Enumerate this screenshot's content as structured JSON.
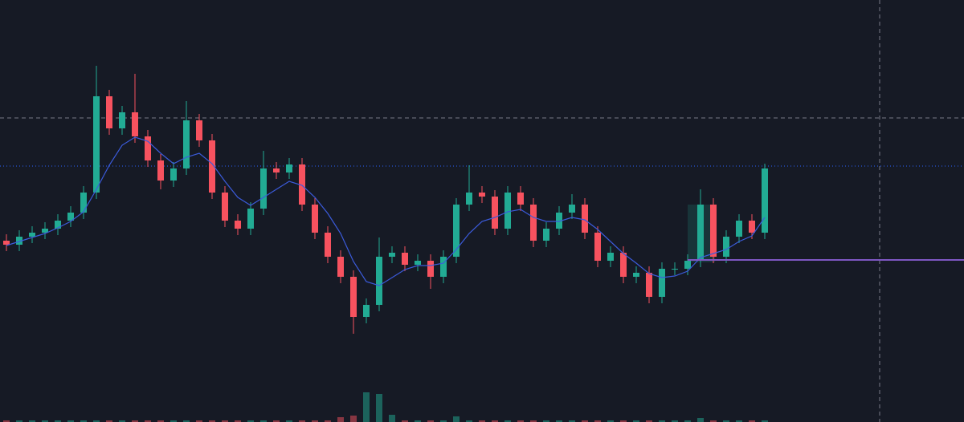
{
  "chart_data": {
    "type": "candlestick",
    "candles": [
      [
        226,
        234,
        213,
        221
      ],
      [
        221,
        239,
        213,
        231
      ],
      [
        231,
        244,
        223,
        236
      ],
      [
        236,
        249,
        228,
        241
      ],
      [
        241,
        259,
        233,
        251
      ],
      [
        251,
        269,
        243,
        261
      ],
      [
        261,
        294,
        253,
        286
      ],
      [
        286,
        444,
        278,
        406
      ],
      [
        406,
        414,
        358,
        366
      ],
      [
        366,
        394,
        358,
        386
      ],
      [
        386,
        434,
        348,
        356
      ],
      [
        356,
        364,
        318,
        326
      ],
      [
        326,
        334,
        290,
        301
      ],
      [
        301,
        324,
        293,
        316
      ],
      [
        316,
        400,
        308,
        376
      ],
      [
        376,
        384,
        343,
        351
      ],
      [
        351,
        359,
        278,
        286
      ],
      [
        286,
        294,
        243,
        251
      ],
      [
        251,
        259,
        233,
        241
      ],
      [
        241,
        274,
        233,
        266
      ],
      [
        266,
        338,
        258,
        316
      ],
      [
        316,
        324,
        303,
        311
      ],
      [
        311,
        329,
        303,
        321
      ],
      [
        321,
        329,
        263,
        271
      ],
      [
        271,
        279,
        228,
        236
      ],
      [
        236,
        244,
        198,
        206
      ],
      [
        206,
        214,
        173,
        181
      ],
      [
        181,
        189,
        110,
        131
      ],
      [
        131,
        154,
        123,
        146
      ],
      [
        146,
        230,
        138,
        206
      ],
      [
        206,
        219,
        198,
        211
      ],
      [
        211,
        219,
        188,
        196
      ],
      [
        196,
        209,
        188,
        201
      ],
      [
        201,
        209,
        166,
        181
      ],
      [
        181,
        214,
        173,
        206
      ],
      [
        206,
        279,
        198,
        271
      ],
      [
        271,
        320,
        263,
        286
      ],
      [
        286,
        294,
        273,
        281
      ],
      [
        281,
        289,
        233,
        241
      ],
      [
        241,
        294,
        233,
        286
      ],
      [
        286,
        294,
        263,
        271
      ],
      [
        271,
        279,
        218,
        226
      ],
      [
        226,
        249,
        218,
        241
      ],
      [
        241,
        269,
        233,
        261
      ],
      [
        261,
        284,
        253,
        271
      ],
      [
        271,
        279,
        228,
        236
      ],
      [
        236,
        244,
        193,
        201
      ],
      [
        201,
        219,
        193,
        211
      ],
      [
        211,
        219,
        173,
        181
      ],
      [
        181,
        194,
        173,
        186
      ],
      [
        186,
        194,
        148,
        156
      ],
      [
        156,
        199,
        148,
        191
      ],
      [
        191,
        199,
        183,
        191
      ],
      [
        191,
        209,
        183,
        201
      ],
      [
        201,
        290,
        193,
        271
      ],
      [
        271,
        279,
        198,
        206
      ],
      [
        206,
        239,
        198,
        231
      ],
      [
        231,
        259,
        223,
        251
      ],
      [
        251,
        259,
        228,
        236
      ],
      [
        236,
        322,
        228,
        316
      ]
    ],
    "moving_average": [
      220,
      225,
      230,
      235,
      242,
      250,
      262,
      290,
      320,
      345,
      355,
      350,
      335,
      322,
      330,
      335,
      322,
      300,
      280,
      270,
      280,
      290,
      300,
      295,
      280,
      260,
      235,
      200,
      175,
      170,
      180,
      190,
      195,
      195,
      198,
      215,
      235,
      250,
      255,
      262,
      265,
      255,
      250,
      250,
      255,
      252,
      240,
      225,
      210,
      198,
      185,
      180,
      182,
      188,
      205,
      210,
      215,
      225,
      232,
      255
    ],
    "volume": [
      20,
      20,
      20,
      20,
      20,
      20,
      20,
      20,
      20,
      20,
      20,
      20,
      20,
      20,
      20,
      20,
      20,
      20,
      20,
      20,
      20,
      20,
      20,
      20,
      20,
      20,
      60,
      80,
      370,
      350,
      90,
      20,
      20,
      20,
      20,
      70,
      20,
      20,
      20,
      20,
      20,
      20,
      20,
      20,
      20,
      20,
      20,
      20,
      20,
      20,
      20,
      20,
      20,
      20,
      50,
      20,
      20,
      20,
      20,
      20
    ],
    "volume_lim": [
      0,
      1000
    ],
    "ylim": [
      0,
      526
    ],
    "price_line": 319,
    "level_line": {
      "start": 53,
      "value": 202
    },
    "up_color": "#22ab94",
    "down_color": "#f7525f",
    "ma_color": "#3b5bdb",
    "price_line_color": "#2962ff",
    "level_color": "#7e57c2"
  }
}
